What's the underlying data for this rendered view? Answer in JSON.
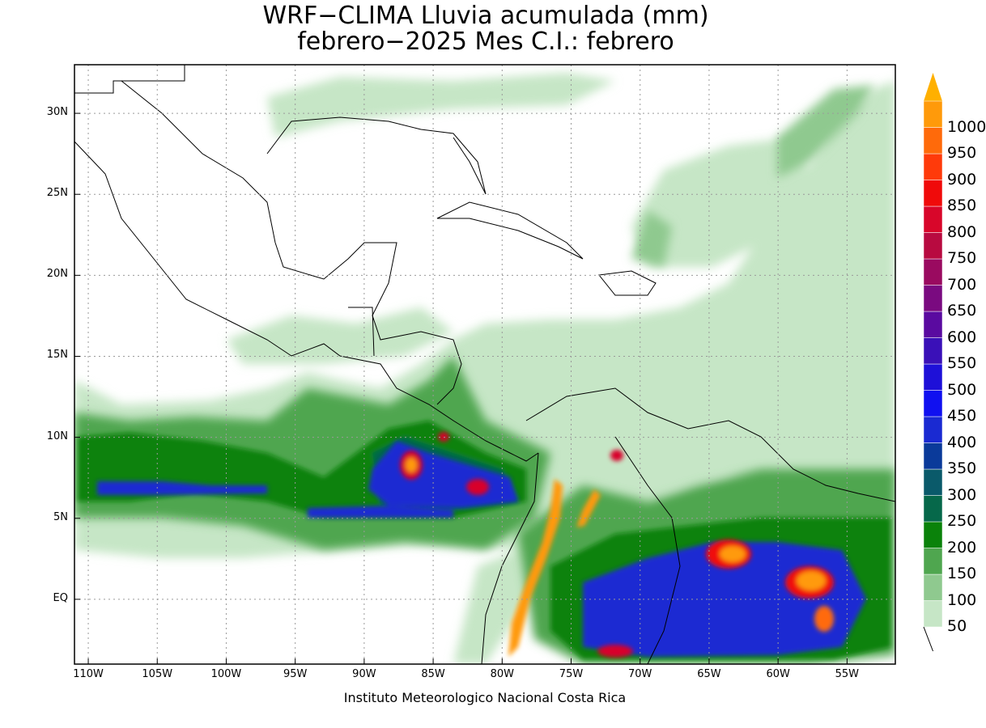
{
  "title": {
    "line1": "WRF−CLIMA Lluvia acumulada (mm)",
    "line2": "febrero−2025 Mes C.I.: febrero"
  },
  "credit": "Instituto Meteorologico Nacional Costa Rica",
  "map": {
    "lon_range": [
      -111,
      -51.5
    ],
    "lat_range": [
      -4,
      33
    ],
    "x_ticks": [
      {
        "lon": -110,
        "label": "110W"
      },
      {
        "lon": -105,
        "label": "105W"
      },
      {
        "lon": -100,
        "label": "100W"
      },
      {
        "lon": -95,
        "label": "95W"
      },
      {
        "lon": -90,
        "label": "90W"
      },
      {
        "lon": -85,
        "label": "85W"
      },
      {
        "lon": -80,
        "label": "80W"
      },
      {
        "lon": -75,
        "label": "75W"
      },
      {
        "lon": -70,
        "label": "70W"
      },
      {
        "lon": -65,
        "label": "65W"
      },
      {
        "lon": -60,
        "label": "60W"
      },
      {
        "lon": -55,
        "label": "55W"
      }
    ],
    "y_ticks": [
      {
        "lat": 30,
        "label": "30N"
      },
      {
        "lat": 25,
        "label": "25N"
      },
      {
        "lat": 20,
        "label": "20N"
      },
      {
        "lat": 15,
        "label": "15N"
      },
      {
        "lat": 10,
        "label": "10N"
      },
      {
        "lat": 5,
        "label": "5N"
      },
      {
        "lat": 0,
        "label": "EQ"
      }
    ]
  },
  "colorbar": {
    "levels": [
      {
        "label": "50",
        "color": "#c6e6c6"
      },
      {
        "label": "100",
        "color": "#8fc98f"
      },
      {
        "label": "150",
        "color": "#4fa64f"
      },
      {
        "label": "200",
        "color": "#0a820a"
      },
      {
        "label": "250",
        "color": "#06684a"
      },
      {
        "label": "300",
        "color": "#0a5a6a"
      },
      {
        "label": "350",
        "color": "#0a3a9a"
      },
      {
        "label": "400",
        "color": "#1a2ad2"
      },
      {
        "label": "450",
        "color": "#1010f0"
      },
      {
        "label": "500",
        "color": "#1e10d8"
      },
      {
        "label": "550",
        "color": "#3a10b8"
      },
      {
        "label": "600",
        "color": "#5a0aa0"
      },
      {
        "label": "650",
        "color": "#7a0a80"
      },
      {
        "label": "700",
        "color": "#9a0a60"
      },
      {
        "label": "750",
        "color": "#b80a40"
      },
      {
        "label": "800",
        "color": "#d8062a"
      },
      {
        "label": "850",
        "color": "#f00a0a"
      },
      {
        "label": "900",
        "color": "#ff3a0a"
      },
      {
        "label": "950",
        "color": "#ff6a0a"
      },
      {
        "label": "1000",
        "color": "#ff9a0a"
      }
    ],
    "over_color": "#ffb000"
  }
}
